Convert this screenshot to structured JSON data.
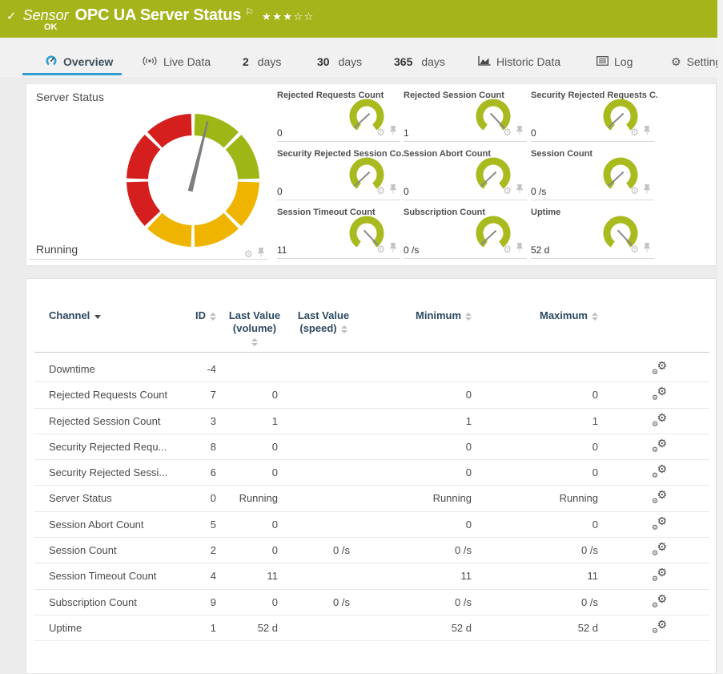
{
  "colors": {
    "header_green": "#a6b41c",
    "tab_accent_blue": "#2f9fd0",
    "gauge_green": "#9eb616",
    "gauge_yellow": "#efb400",
    "gauge_red": "#d51f1f",
    "mini_gauge_green": "#a9ba1f",
    "needle_gray": "#7d7d7d",
    "table_header_text": "#2c4963"
  },
  "header": {
    "check_icon": "✓",
    "sensor_label": "Sensor",
    "title": "OPC UA Server Status",
    "flag_icon": "⚐",
    "stars": "★★★☆☆",
    "status": "OK"
  },
  "tabs": {
    "items": [
      {
        "label": "Overview",
        "active": true
      },
      {
        "label": "Live Data"
      },
      {
        "prefix": "2",
        "label": "days"
      },
      {
        "prefix": "30",
        "label": "days"
      },
      {
        "prefix": "365",
        "label": "days"
      },
      {
        "label": "Historic Data"
      },
      {
        "label": "Log"
      },
      {
        "label": "Settings"
      }
    ]
  },
  "gauge_panel": {
    "title": "Server Status",
    "status_value": "Running",
    "needle_angle": 14,
    "segments": [
      "green",
      "green",
      "yellow",
      "yellow",
      "yellow",
      "red",
      "red",
      "red"
    ]
  },
  "mini_gauges": [
    {
      "title": "Rejected Requests Count",
      "value": "0",
      "needle": 227
    },
    {
      "title": "Rejected Session Count",
      "value": "1",
      "needle": 137
    },
    {
      "title": "Security Rejected Requests C...",
      "value": "0",
      "needle": 227
    },
    {
      "title": "Security Rejected Session Co...",
      "value": "0",
      "needle": 227
    },
    {
      "title": "Session Abort Count",
      "value": "0",
      "needle": 227
    },
    {
      "title": "Session Count",
      "value": "0 /s",
      "needle": 227
    },
    {
      "title": "Session Timeout Count",
      "value": "11",
      "needle": 137
    },
    {
      "title": "Subscription Count",
      "value": "0 /s",
      "needle": 227
    },
    {
      "title": "Uptime",
      "value": "52 d",
      "needle": 137
    }
  ],
  "table": {
    "headers": {
      "channel": "Channel",
      "id": "ID",
      "last_value_volume_1": "Last Value",
      "last_value_volume_2": "(volume)",
      "last_value_speed_1": "Last Value",
      "last_value_speed_2": "(speed)",
      "minimum": "Minimum",
      "maximum": "Maximum"
    },
    "rows": [
      {
        "channel": "Downtime",
        "id": "-4",
        "volume": "",
        "speed": "",
        "min": "",
        "max": ""
      },
      {
        "channel": "Rejected Requests Count",
        "id": "7",
        "volume": "0",
        "speed": "",
        "min": "0",
        "max": "0"
      },
      {
        "channel": "Rejected Session Count",
        "id": "3",
        "volume": "1",
        "speed": "",
        "min": "1",
        "max": "1"
      },
      {
        "channel": "Security Rejected Requ...",
        "id": "8",
        "volume": "0",
        "speed": "",
        "min": "0",
        "max": "0"
      },
      {
        "channel": "Security Rejected Sessi...",
        "id": "6",
        "volume": "0",
        "speed": "",
        "min": "0",
        "max": "0"
      },
      {
        "channel": "Server Status",
        "id": "0",
        "volume": "Running",
        "speed": "",
        "min": "Running",
        "max": "Running"
      },
      {
        "channel": "Session Abort Count",
        "id": "5",
        "volume": "0",
        "speed": "",
        "min": "0",
        "max": "0"
      },
      {
        "channel": "Session Count",
        "id": "2",
        "volume": "0",
        "speed": "0 /s",
        "min": "0 /s",
        "max": "0 /s"
      },
      {
        "channel": "Session Timeout Count",
        "id": "4",
        "volume": "11",
        "speed": "",
        "min": "11",
        "max": "11"
      },
      {
        "channel": "Subscription Count",
        "id": "9",
        "volume": "0",
        "speed": "0 /s",
        "min": "0 /s",
        "max": "0 /s"
      },
      {
        "channel": "Uptime",
        "id": "1",
        "volume": "52 d",
        "speed": "",
        "min": "52 d",
        "max": "52 d"
      }
    ]
  }
}
